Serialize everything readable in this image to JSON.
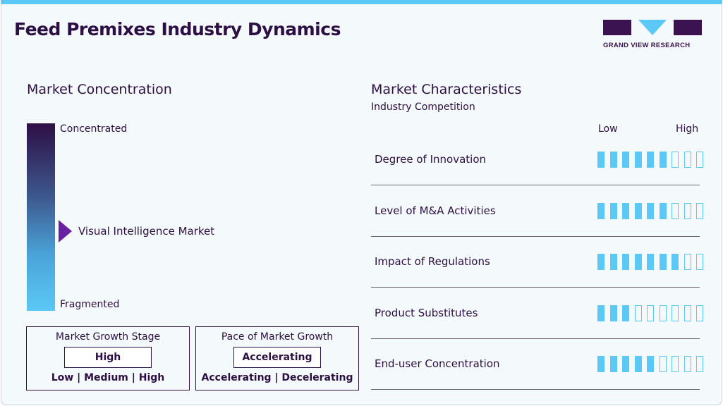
{
  "title": "Feed Premixes Industry Dynamics",
  "logo": {
    "text": "GRAND VIEW RESEARCH"
  },
  "colors": {
    "accent": "#5bc8f5",
    "brand": "#2d0f45",
    "marker": "#6a1fa0"
  },
  "concentration": {
    "heading": "Market Concentration",
    "top_label": "Concentrated",
    "bottom_label": "Fragmented",
    "marker_label": "Visual Intelligence Market"
  },
  "growth_stage": {
    "title": "Market Growth Stage",
    "value": "High",
    "options": "Low | Medium | High"
  },
  "pace": {
    "title": "Pace of Market Growth",
    "value": "Accelerating",
    "options": "Accelerating | Decelerating"
  },
  "characteristics": {
    "heading": "Market Characteristics",
    "subheading": "Industry Competition",
    "low": "Low",
    "high": "High",
    "max_level": 9,
    "rows": [
      {
        "label": "Degree of Innovation",
        "level": 6
      },
      {
        "label": "Level of M&A Activities",
        "level": 6
      },
      {
        "label": "Impact of Regulations",
        "level": 7
      },
      {
        "label": "Product Substitutes",
        "level": 3
      },
      {
        "label": "End-user Concentration",
        "level": 5
      }
    ]
  }
}
